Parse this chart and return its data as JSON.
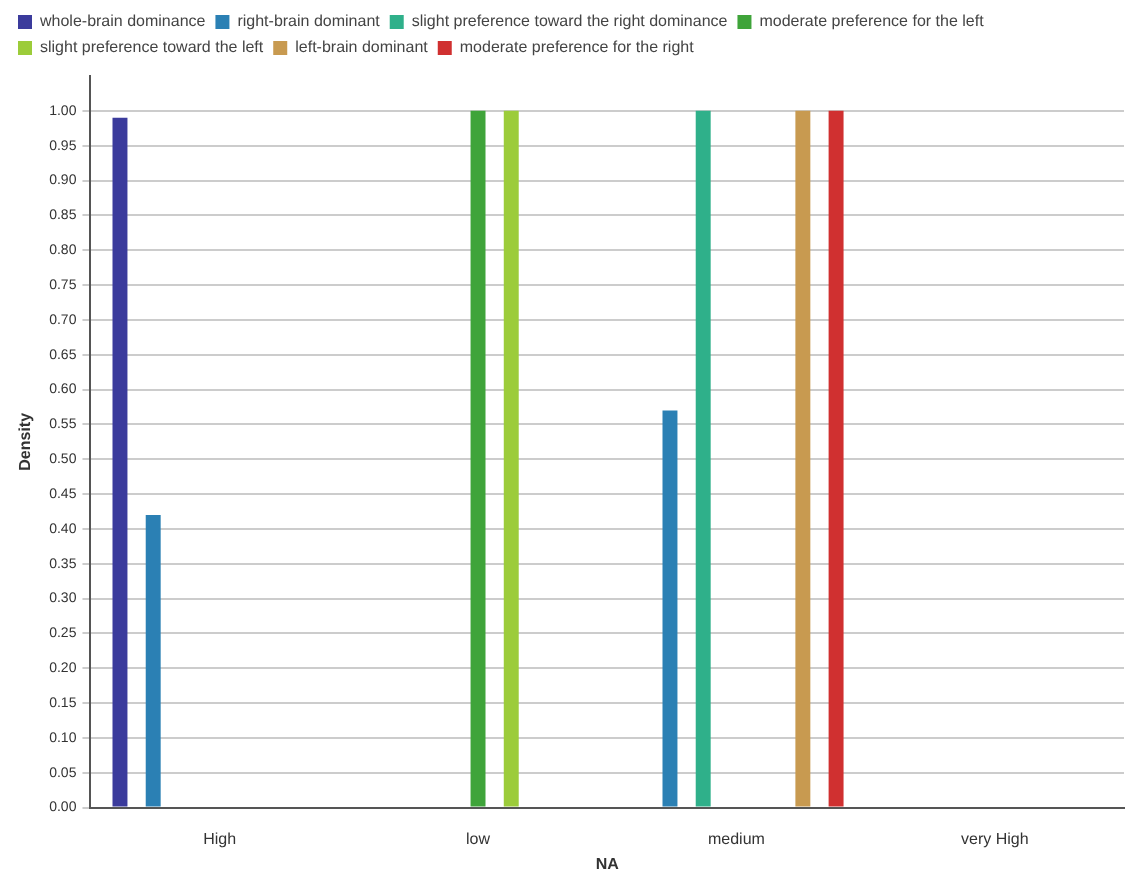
{
  "chart_data": {
    "type": "bar",
    "xlabel": "NA",
    "ylabel": "Density",
    "categories": [
      "High",
      "low",
      "medium",
      "very High"
    ],
    "series": [
      {
        "name": "whole-brain dominance",
        "color": "#3b3b9c",
        "values": [
          0.99,
          0,
          0,
          0
        ]
      },
      {
        "name": "right-brain dominant",
        "color": "#2b80b4",
        "values": [
          0.42,
          0,
          0.57,
          0
        ]
      },
      {
        "name": "slight preference toward the right dominance",
        "color": "#2fb08a",
        "values": [
          0,
          0,
          1.0,
          0
        ]
      },
      {
        "name": "moderate preference for the left",
        "color": "#3fa43a",
        "values": [
          0,
          1.0,
          0,
          0
        ]
      },
      {
        "name": "slight preference toward the left",
        "color": "#9ccc3a",
        "values": [
          0,
          1.0,
          0,
          0
        ]
      },
      {
        "name": "left-brain dominant",
        "color": "#c89a50",
        "values": [
          0,
          0,
          1.0,
          0
        ]
      },
      {
        "name": "moderate preference for the right",
        "color": "#d03030",
        "values": [
          0,
          0,
          1.0,
          0
        ]
      }
    ],
    "ylim": [
      0,
      1.05
    ],
    "yticks": [
      {
        "value": 0,
        "label": "0.00"
      },
      {
        "value": 0.05,
        "label": "0.05"
      },
      {
        "value": 0.1,
        "label": "0.10"
      },
      {
        "value": 0.15,
        "label": "0.15"
      },
      {
        "value": 0.2,
        "label": "0.20"
      },
      {
        "value": 0.25,
        "label": "0.25"
      },
      {
        "value": 0.3,
        "label": "0.30"
      },
      {
        "value": 0.35,
        "label": "0.35"
      },
      {
        "value": 0.4,
        "label": "0.40"
      },
      {
        "value": 0.45,
        "label": "0.45"
      },
      {
        "value": 0.5,
        "label": "0.50"
      },
      {
        "value": 0.55,
        "label": "0.55"
      },
      {
        "value": 0.6,
        "label": "0.60"
      },
      {
        "value": 0.65,
        "label": "0.65"
      },
      {
        "value": 0.7,
        "label": "0.70"
      },
      {
        "value": 0.75,
        "label": "0.75"
      },
      {
        "value": 0.8,
        "label": "0.80"
      },
      {
        "value": 0.85,
        "label": "0.85"
      },
      {
        "value": 0.9,
        "label": "0.90"
      },
      {
        "value": 0.95,
        "label": "0.95"
      },
      {
        "value": 1.0,
        "label": "1.00"
      }
    ],
    "grid": "y",
    "legend": "top left"
  }
}
